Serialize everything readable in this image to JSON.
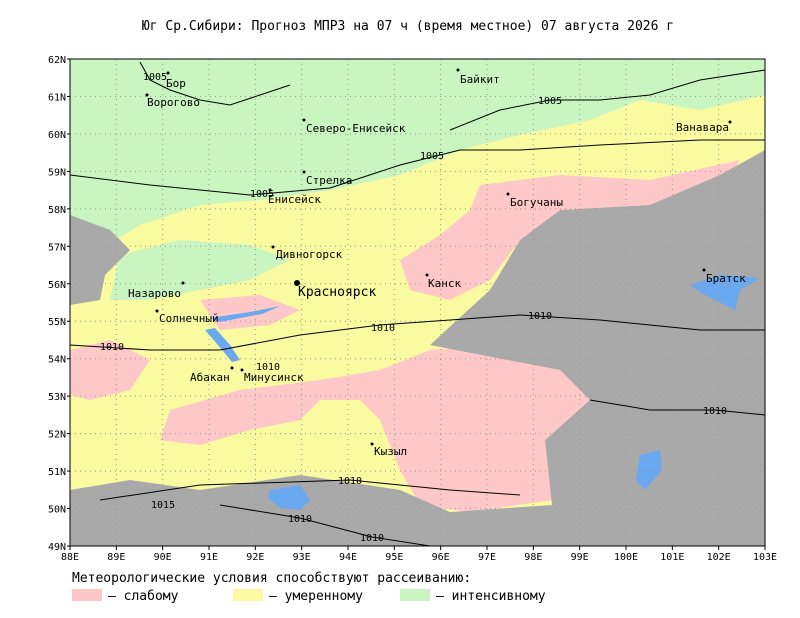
{
  "title": "Юг Ср.Сибири:  Прогноз МПРЗ на 07 ч (время местное) 07 августа 2026 г",
  "axes": {
    "lon_labels": [
      "88E",
      "89E",
      "90E",
      "91E",
      "92E",
      "93E",
      "94E",
      "95E",
      "96E",
      "97E",
      "98E",
      "99E",
      "100E",
      "101E",
      "102E",
      "103E"
    ],
    "lat_labels": [
      "62N",
      "61N",
      "60N",
      "59N",
      "58N",
      "57N",
      "56N",
      "55N",
      "54N",
      "53N",
      "52N",
      "51N",
      "50N",
      "49N"
    ]
  },
  "cities": [
    "Бор",
    "Ворогово",
    "Байкит",
    "Северо-Енисейск",
    "Ванавара",
    "Стрелка",
    "Енисейск",
    "Богучаны",
    "Дивногорск",
    "Красноярск",
    "Канск",
    "Братск",
    "Назарово",
    "Солнечный",
    "Абакан",
    "Минусинск",
    "Кызыл"
  ],
  "isobars": [
    "1005",
    "1005",
    "1005",
    "1005",
    "1010",
    "1010",
    "1010",
    "1010",
    "1010",
    "1010",
    "1015",
    "1010",
    "1010"
  ],
  "legend": {
    "heading": "Метеорологические условия способствуют рассеиванию:",
    "items": [
      "– слабому",
      "– умеренному",
      "– интенсивному"
    ]
  }
}
